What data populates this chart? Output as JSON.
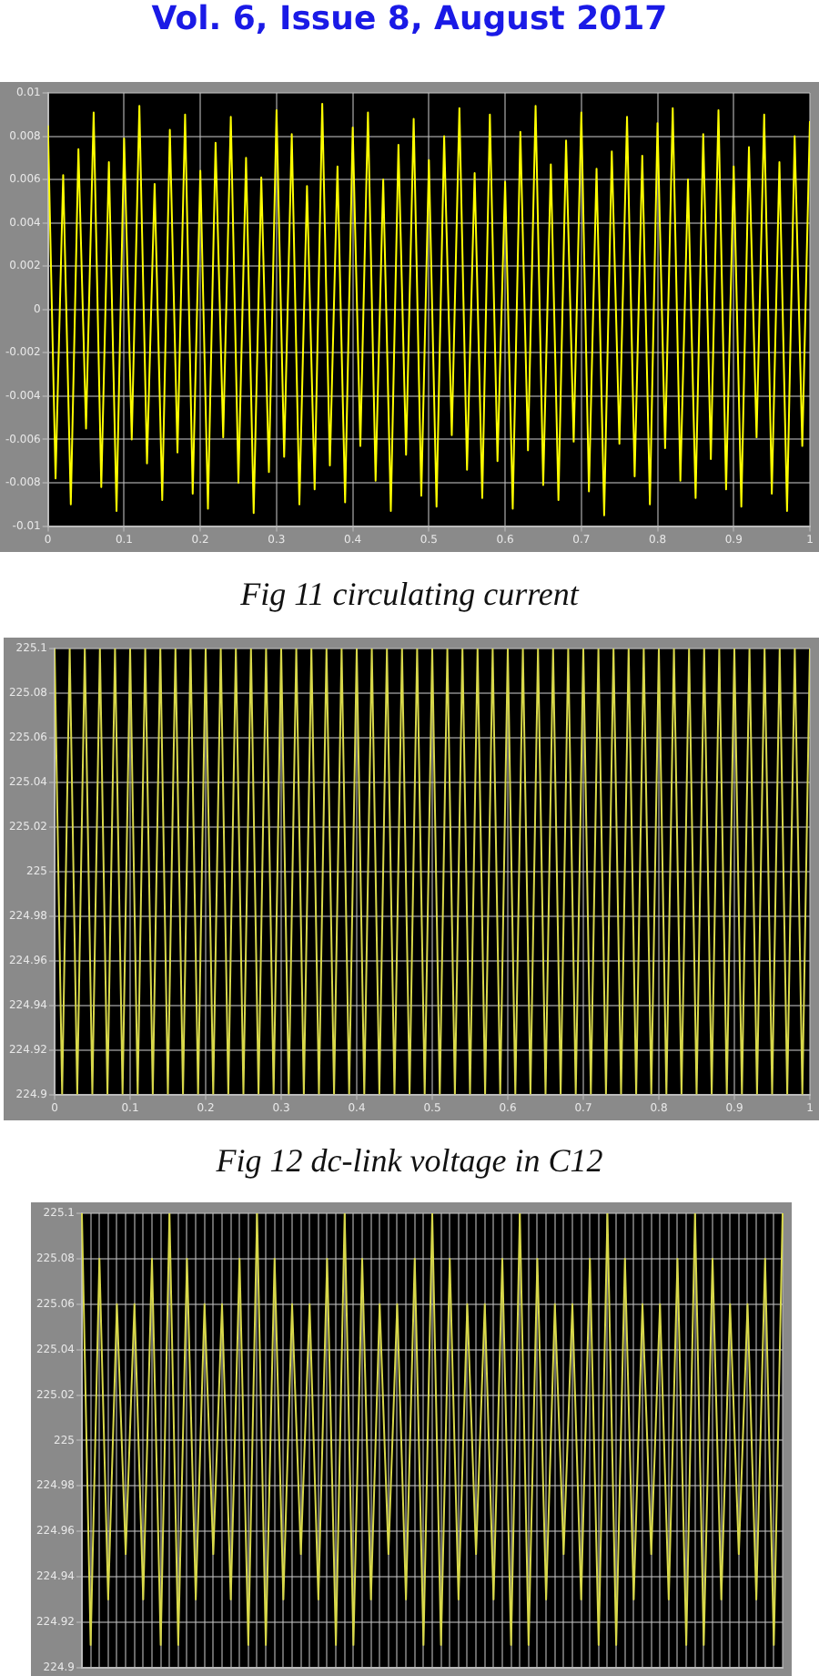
{
  "chart_data": [
    {
      "type": "line",
      "title": "Fig 11 circulating current",
      "annotations": [
        "Vol. 6, Issue 8, August 2017"
      ],
      "x": [
        0,
        0.01,
        0.02,
        0.03,
        0.04,
        0.05,
        0.06,
        0.07,
        0.08,
        0.09,
        0.1,
        0.11,
        0.12,
        0.13,
        0.14,
        0.15,
        0.16,
        0.17,
        0.18,
        0.19,
        0.2,
        0.21,
        0.22,
        0.23,
        0.24,
        0.25,
        0.26,
        0.27,
        0.28,
        0.29,
        0.3,
        0.31,
        0.32,
        0.33,
        0.34,
        0.35,
        0.36,
        0.37,
        0.38,
        0.39,
        0.4,
        0.41,
        0.42,
        0.43,
        0.44,
        0.45,
        0.46,
        0.47,
        0.48,
        0.49,
        0.5,
        0.51,
        0.52,
        0.53,
        0.54,
        0.55,
        0.56,
        0.57,
        0.58,
        0.59,
        0.6,
        0.61,
        0.62,
        0.63,
        0.64,
        0.65,
        0.66,
        0.67,
        0.68,
        0.69,
        0.7,
        0.71,
        0.72,
        0.73,
        0.74,
        0.75,
        0.76,
        0.77,
        0.78,
        0.79,
        0.8,
        0.81,
        0.82,
        0.83,
        0.84,
        0.85,
        0.86,
        0.87,
        0.88,
        0.89,
        0.9,
        0.91,
        0.92,
        0.93,
        0.94,
        0.95,
        0.96,
        0.97,
        0.98,
        0.99,
        1
      ],
      "series": [
        {
          "color": "#ffff00",
          "values": [
            0.0085,
            -0.0078,
            0.0062,
            -0.009,
            0.0074,
            -0.0055,
            0.0091,
            -0.0082,
            0.0068,
            -0.0093,
            0.0079,
            -0.006,
            0.0094,
            -0.0071,
            0.0058,
            -0.0088,
            0.0083,
            -0.0066,
            0.009,
            -0.0085,
            0.0064,
            -0.0092,
            0.0077,
            -0.0059,
            0.0089,
            -0.008,
            0.007,
            -0.0094,
            0.0061,
            -0.0075,
            0.0092,
            -0.0068,
            0.0081,
            -0.009,
            0.0057,
            -0.0083,
            0.0095,
            -0.0072,
            0.0066,
            -0.0089,
            0.0084,
            -0.0063,
            0.0091,
            -0.0079,
            0.006,
            -0.0093,
            0.0076,
            -0.0067,
            0.0088,
            -0.0086,
            0.0069,
            -0.0091,
            0.008,
            -0.0058,
            0.0093,
            -0.0074,
            0.0063,
            -0.0087,
            0.009,
            -0.007,
            0.0059,
            -0.0092,
            0.0082,
            -0.0065,
            0.0094,
            -0.0081,
            0.0067,
            -0.0088,
            0.0078,
            -0.0061,
            0.0091,
            -0.0084,
            0.0065,
            -0.0095,
            0.0073,
            -0.0062,
            0.0089,
            -0.0077,
            0.0071,
            -0.009,
            0.0086,
            -0.0064,
            0.0093,
            -0.0079,
            0.006,
            -0.0087,
            0.0081,
            -0.0069,
            0.0092,
            -0.0083,
            0.0066,
            -0.0091,
            0.0075,
            -0.0059,
            0.009,
            -0.0085,
            0.0068,
            -0.0093,
            0.008,
            -0.0063,
            0.0087
          ]
        }
      ],
      "xlim": [
        0,
        1
      ],
      "xticks": [
        0,
        0.1,
        0.2,
        0.3,
        0.4,
        0.5,
        0.6,
        0.7,
        0.8,
        0.9,
        1
      ],
      "ylim": [
        -0.01,
        0.01
      ],
      "yticks": [
        -0.01,
        -0.008,
        -0.006,
        -0.004,
        -0.002,
        0,
        0.002,
        0.004,
        0.006,
        0.008,
        0.01
      ],
      "grid": true,
      "marker": "none",
      "line_style": "solid"
    },
    {
      "type": "line",
      "title": "Fig 12 dc-link voltage in C12",
      "x": [
        0,
        0.01,
        0.02,
        0.03,
        0.04,
        0.05,
        0.06,
        0.07,
        0.08,
        0.09,
        0.1,
        0.11,
        0.12,
        0.13,
        0.14,
        0.15,
        0.16,
        0.17,
        0.18,
        0.19,
        0.2,
        0.21,
        0.22,
        0.23,
        0.24,
        0.25,
        0.26,
        0.27,
        0.28,
        0.29,
        0.3,
        0.31,
        0.32,
        0.33,
        0.34,
        0.35,
        0.36,
        0.37,
        0.38,
        0.39,
        0.4,
        0.41,
        0.42,
        0.43,
        0.44,
        0.45,
        0.46,
        0.47,
        0.48,
        0.49,
        0.5,
        0.51,
        0.52,
        0.53,
        0.54,
        0.55,
        0.56,
        0.57,
        0.58,
        0.59,
        0.6,
        0.61,
        0.62,
        0.63,
        0.64,
        0.65,
        0.66,
        0.67,
        0.68,
        0.69,
        0.7,
        0.71,
        0.72,
        0.73,
        0.74,
        0.75,
        0.76,
        0.77,
        0.78,
        0.79,
        0.8,
        0.81,
        0.82,
        0.83,
        0.84,
        0.85,
        0.86,
        0.87,
        0.88,
        0.89,
        0.9,
        0.91,
        0.92,
        0.93,
        0.94,
        0.95,
        0.96,
        0.97,
        0.98,
        0.99,
        1
      ],
      "series": [
        {
          "color": "#d8d84a",
          "values": [
            225.1,
            224.9,
            225.1,
            224.9,
            225.1,
            224.9,
            225.1,
            224.9,
            225.1,
            224.9,
            225.1,
            224.9,
            225.1,
            224.9,
            225.1,
            224.9,
            225.1,
            224.9,
            225.1,
            224.9,
            225.1,
            224.9,
            225.1,
            224.9,
            225.1,
            224.9,
            225.1,
            224.9,
            225.1,
            224.9,
            225.1,
            224.9,
            225.1,
            224.9,
            225.1,
            224.9,
            225.1,
            224.9,
            225.1,
            224.9,
            225.1,
            224.9,
            225.1,
            224.9,
            225.1,
            224.9,
            225.1,
            224.9,
            225.1,
            224.9,
            225.1,
            224.9,
            225.1,
            224.9,
            225.1,
            224.9,
            225.1,
            224.9,
            225.1,
            224.9,
            225.1,
            224.9,
            225.1,
            224.9,
            225.1,
            224.9,
            225.1,
            224.9,
            225.1,
            224.9,
            225.1,
            224.9,
            225.1,
            224.9,
            225.1,
            224.9,
            225.1,
            224.9,
            225.1,
            224.9,
            225.1,
            224.9,
            225.1,
            224.9,
            225.1,
            224.9,
            225.1,
            224.9,
            225.1,
            224.9,
            225.1,
            224.9,
            225.1,
            224.9,
            225.1,
            224.9,
            225.1,
            224.9,
            225.1,
            224.9,
            225.1
          ]
        }
      ],
      "xlim": [
        0,
        1
      ],
      "xticks": [
        0,
        0.1,
        0.2,
        0.3,
        0.4,
        0.5,
        0.6,
        0.7,
        0.8,
        0.9,
        1
      ],
      "ylim": [
        224.9,
        225.1
      ],
      "yticks": [
        224.9,
        224.92,
        224.94,
        224.96,
        224.98,
        225,
        225.02,
        225.04,
        225.06,
        225.08,
        225.1
      ],
      "grid": true,
      "marker": "none",
      "line_style": "solid"
    },
    {
      "type": "line",
      "categories": [
        null,
        null,
        null,
        null,
        null,
        null,
        null,
        null,
        null,
        null,
        null,
        null,
        null,
        null,
        null,
        null,
        null,
        null,
        null,
        null,
        null,
        null,
        null,
        null,
        null,
        null,
        null,
        null,
        null,
        null,
        null,
        null,
        null,
        null,
        null,
        null,
        null,
        null,
        null,
        null,
        null,
        null,
        null,
        null,
        null,
        null,
        null,
        null,
        null,
        null,
        null,
        null,
        null,
        null,
        null,
        null,
        null,
        null,
        null,
        null,
        null,
        null,
        null,
        null,
        null,
        null,
        null,
        null,
        null,
        null,
        null,
        null,
        null,
        null,
        null,
        null,
        null,
        null,
        null,
        null,
        null
      ],
      "series": [
        {
          "color": "#d8d84a",
          "values": [
            225.1,
            224.91,
            225.08,
            224.93,
            225.06,
            224.95,
            225.06,
            224.93,
            225.08,
            224.91,
            225.1,
            224.91,
            225.08,
            224.93,
            225.06,
            224.95,
            225.06,
            224.93,
            225.08,
            224.91,
            225.1,
            224.91,
            225.08,
            224.93,
            225.06,
            224.95,
            225.06,
            224.93,
            225.08,
            224.91,
            225.1,
            224.91,
            225.08,
            224.93,
            225.06,
            224.95,
            225.06,
            224.93,
            225.08,
            224.91,
            225.1,
            224.91,
            225.08,
            224.93,
            225.06,
            224.95,
            225.06,
            224.93,
            225.08,
            224.91,
            225.1,
            224.91,
            225.08,
            224.93,
            225.06,
            224.95,
            225.06,
            224.93,
            225.08,
            224.91,
            225.1,
            224.91,
            225.08,
            224.93,
            225.06,
            224.95,
            225.06,
            224.93,
            225.08,
            224.91,
            225.1,
            224.91,
            225.08,
            224.93,
            225.06,
            224.95,
            225.06,
            224.93,
            225.08,
            224.91,
            225.1
          ]
        }
      ],
      "ylim": [
        224.9,
        225.1
      ],
      "yticks": [
        224.9,
        224.92,
        224.94,
        224.96,
        224.98,
        225,
        225.02,
        225.04,
        225.06,
        225.08,
        225.1
      ],
      "grid": true,
      "tick_labels": "y",
      "marker": "none",
      "line_style": "solid"
    }
  ]
}
